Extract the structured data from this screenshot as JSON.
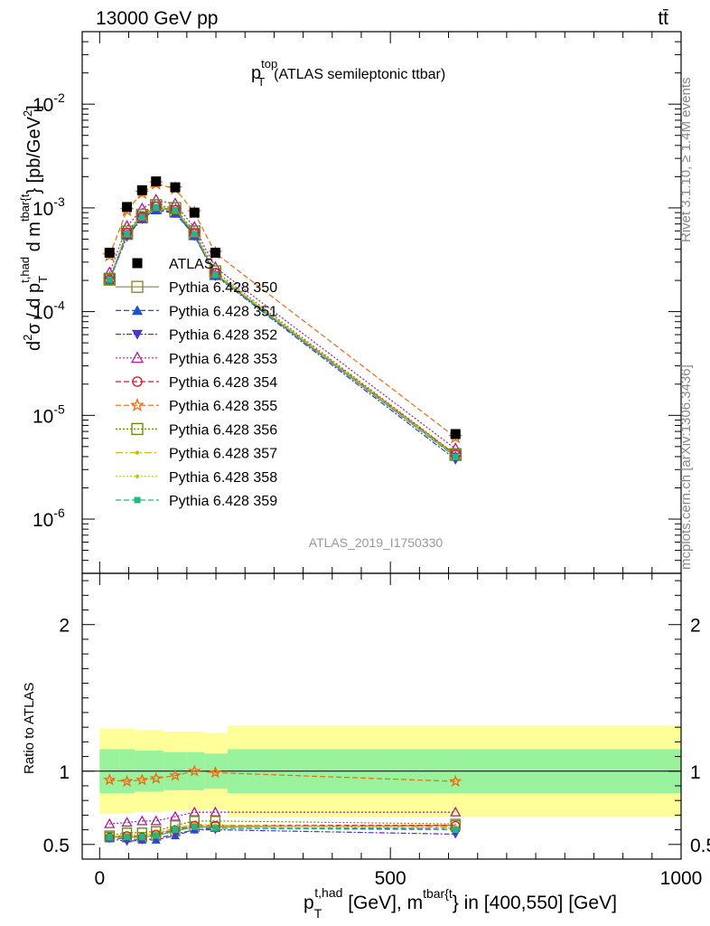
{
  "header": {
    "energy": "13000 GeV pp",
    "process": "tt̄"
  },
  "side_labels": {
    "rivet": "Rivet 3.1.10, ≥ 1.4M events",
    "mcplots": "mcplots.cern.ch [arXiv:1306.3436]"
  },
  "analysis_id": "ATLAS_2019_I1750330",
  "chart_data": {
    "type": "scatter",
    "title": "p_T^top (ATLAS semileptonic ttbar)",
    "title_parts": {
      "p": "p",
      "sup": "top",
      "sub": "T",
      "rest": "(ATLAS semileptonic ttbar)"
    },
    "xlabel": "p_T^{t,had} [GeV], m^{tbar{t}} in [400,550] [GeV]",
    "xlabel_parts": {
      "p": "p",
      "sub": "T",
      "sup": "t,had",
      "mid": " [GeV], m",
      "sup2": "tbar{t",
      "end": "} in [400,550] [GeV]"
    },
    "ylabel": "d²σ / d p_T^{t,had} d m^{tbar{t}} [pb/GeV²]",
    "ylabel_parts": {
      "a": "d",
      "a_sup": "2",
      "b": "σ / d p",
      "b_sub": "T",
      "b_sup": "t,had",
      "c": " d m",
      "c_sup": "tbar{t",
      "d": "} [pb/GeV",
      "d_sup": "2",
      "e": "]"
    },
    "ratio_ylabel": "Ratio to ATLAS",
    "xlim": [
      -30,
      1000
    ],
    "ylim": [
      3e-07,
      0.05
    ],
    "ylog": true,
    "ratio_ylim": [
      0.4,
      2.35
    ],
    "x_ticks": [
      "0",
      "500",
      "1000"
    ],
    "y_tick_labels": [
      {
        "base": "10",
        "exp": "-6"
      },
      {
        "base": "10",
        "exp": "-5"
      },
      {
        "base": "10",
        "exp": "-4"
      },
      {
        "base": "10",
        "exp": "-3"
      },
      {
        "base": "10",
        "exp": "-2"
      }
    ],
    "ratio_ticks": [
      "0.5",
      "1",
      "2"
    ],
    "x": [
      17,
      47,
      73,
      97,
      130,
      163,
      199,
      612
    ],
    "bin_edges": [
      0,
      35,
      60,
      85,
      110,
      150,
      180,
      220,
      1000
    ],
    "data": {
      "name": "ATLAS",
      "values": [
        0.00037,
        0.00102,
        0.00148,
        0.0018,
        0.00158,
        0.0009,
        0.00037,
        6.6e-06
      ],
      "band_inner": [
        0.15,
        0.15,
        0.14,
        0.14,
        0.13,
        0.13,
        0.12,
        0.15
      ],
      "band_outer": [
        0.29,
        0.29,
        0.28,
        0.28,
        0.27,
        0.27,
        0.26,
        0.31
      ]
    },
    "series": [
      {
        "name": "Pythia 6.428 350",
        "color": "#8b8b2a",
        "marker": "square-open",
        "dash": "",
        "ratio": [
          0.55,
          0.55,
          0.55,
          0.56,
          0.59,
          0.62,
          0.62,
          0.63
        ]
      },
      {
        "name": "Pythia 6.428 351",
        "color": "#1f4fd6",
        "marker": "triangle-up",
        "dash": "6,3",
        "ratio": [
          0.54,
          0.54,
          0.53,
          0.53,
          0.56,
          0.6,
          0.61,
          0.61
        ]
      },
      {
        "name": "Pythia 6.428 352",
        "color": "#5233c8",
        "marker": "triangle-down",
        "dash": "6,2,2,2",
        "ratio": [
          0.54,
          0.52,
          0.53,
          0.54,
          0.57,
          0.6,
          0.6,
          0.57
        ]
      },
      {
        "name": "Pythia 6.428 353",
        "color": "#b01b98",
        "marker": "triangle-up-open",
        "dash": "2,2",
        "ratio": [
          0.64,
          0.65,
          0.66,
          0.66,
          0.69,
          0.72,
          0.72,
          0.72
        ]
      },
      {
        "name": "Pythia 6.428 354",
        "color": "#d8182a",
        "marker": "circle-open",
        "dash": "6,3",
        "ratio": [
          0.55,
          0.56,
          0.55,
          0.57,
          0.6,
          0.63,
          0.63,
          0.63
        ]
      },
      {
        "name": "Pythia 6.428 355",
        "color": "#ee6a14",
        "marker": "star",
        "dash": "6,3",
        "ratio": [
          0.94,
          0.93,
          0.94,
          0.95,
          0.97,
          1.0,
          0.99,
          0.93
        ]
      },
      {
        "name": "Pythia 6.428 356",
        "color": "#6b8e0e",
        "marker": "square-open",
        "dash": "2,2",
        "ratio": [
          0.56,
          0.58,
          0.58,
          0.59,
          0.63,
          0.66,
          0.66,
          0.64
        ]
      },
      {
        "name": "Pythia 6.428 357",
        "color": "#d8b514",
        "marker": "dot",
        "dash": "8,3,2,3",
        "ratio": [
          0.55,
          0.57,
          0.56,
          0.58,
          0.61,
          0.64,
          0.63,
          0.62
        ]
      },
      {
        "name": "Pythia 6.428 358",
        "color": "#b8cc10",
        "marker": "dot",
        "dash": "2,2",
        "ratio": [
          0.55,
          0.56,
          0.56,
          0.57,
          0.61,
          0.63,
          0.63,
          0.61
        ]
      },
      {
        "name": "Pythia 6.428 359",
        "color": "#22b785",
        "marker": "square-small",
        "dash": "6,3",
        "ratio": [
          0.55,
          0.55,
          0.55,
          0.56,
          0.6,
          0.62,
          0.61,
          0.6
        ]
      }
    ],
    "legend_position": "center-left",
    "grid": false
  }
}
